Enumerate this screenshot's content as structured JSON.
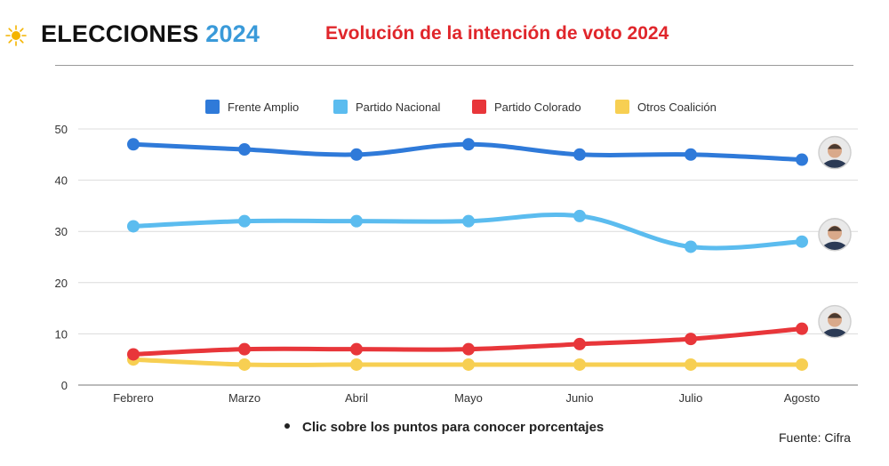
{
  "brand": {
    "main": "ELECCIONES",
    "year": "2024"
  },
  "page_title": "Evolución de la intención de voto 2024",
  "note": "Clic sobre los puntos para conocer porcentajes",
  "source": "Fuente: Cifra",
  "colors": {
    "frente_amplio": "#2f7ad9",
    "partido_nacional": "#5bbcef",
    "partido_colorado": "#e8363a",
    "otros_coalicion": "#f7cf52",
    "title": "#e0262b",
    "brand_year": "#3a9ad9"
  },
  "chart_data": {
    "type": "line",
    "title": "Evolución de la intención de voto 2024",
    "categories": [
      "Febrero",
      "Marzo",
      "Abril",
      "Mayo",
      "Junio",
      "Julio",
      "Agosto"
    ],
    "series": [
      {
        "name": "Frente Amplio",
        "color": "#2f7ad9",
        "values": [
          47,
          46,
          45,
          47,
          45,
          45,
          44
        ],
        "end_avatar": "candidate-photo"
      },
      {
        "name": "Partido Nacional",
        "color": "#5bbcef",
        "values": [
          31,
          32,
          32,
          32,
          33,
          27,
          28
        ],
        "end_avatar": "candidate-photo"
      },
      {
        "name": "Partido Colorado",
        "color": "#e8363a",
        "values": [
          6,
          7,
          7,
          7,
          8,
          9,
          11
        ],
        "end_avatar": "candidate-photo"
      },
      {
        "name": "Otros Coalición",
        "color": "#f7cf52",
        "values": [
          5,
          4,
          4,
          4,
          4,
          4,
          4
        ],
        "end_avatar": null
      }
    ],
    "ylim": [
      0,
      50
    ],
    "yticks": [
      0,
      10,
      20,
      30,
      40,
      50
    ],
    "xlabel": "",
    "ylabel": "",
    "grid": true,
    "legend": "top-center"
  }
}
